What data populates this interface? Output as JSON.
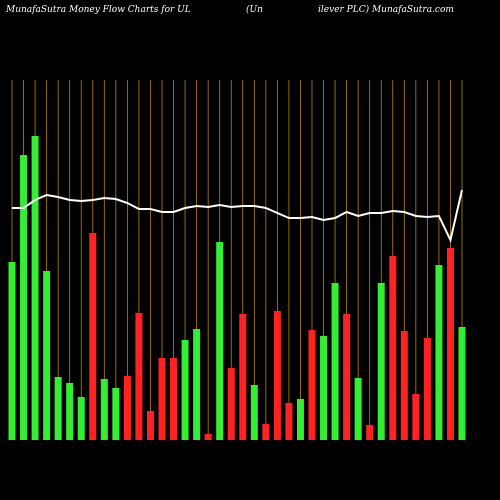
{
  "chart_data": {
    "type": "bar",
    "title": "MunafaSutra  Money Flow  Charts for UL",
    "title_mid": "(Un",
    "title_right": "ilever PLC) MunafaSutra.com",
    "ylim": [
      0,
      360
    ],
    "grid_color": "#b8860b",
    "line_color": "#ffffff",
    "series": [
      {
        "values": [
          178,
          285,
          304,
          169,
          63,
          57,
          43,
          207,
          61,
          52,
          64,
          127,
          29,
          82,
          82,
          100,
          111,
          6,
          198,
          72,
          126,
          55,
          16,
          129,
          37,
          41,
          110,
          104,
          157,
          126,
          62,
          15,
          157,
          184,
          109,
          46,
          102,
          175,
          192,
          113
        ],
        "colors": [
          "#33ee33",
          "#33ee33",
          "#33ee33",
          "#33ee33",
          "#33ee33",
          "#33ee33",
          "#33ee33",
          "#ff2222",
          "#33ee33",
          "#33ee33",
          "#ff2222",
          "#ff2222",
          "#ff2222",
          "#ff2222",
          "#ff2222",
          "#33ee33",
          "#33ee33",
          "#ff2222",
          "#33ee33",
          "#ff2222",
          "#ff2222",
          "#33ee33",
          "#ff2222",
          "#ff2222",
          "#ff2222",
          "#33ee33",
          "#ff2222",
          "#33ee33",
          "#33ee33",
          "#ff2222",
          "#33ee33",
          "#ff2222",
          "#33ee33",
          "#ff2222",
          "#ff2222",
          "#ff2222",
          "#ff2222",
          "#33ee33",
          "#ff2222",
          "#33ee33"
        ]
      },
      {
        "type": "line",
        "values": [
          232,
          232,
          240,
          245,
          243,
          240,
          239,
          240,
          242,
          241,
          237,
          231,
          231,
          228,
          228,
          232,
          234,
          233,
          235,
          233,
          234,
          234,
          232,
          227,
          222,
          222,
          223,
          220,
          222,
          228,
          224,
          227,
          227,
          229,
          228,
          224,
          223,
          224,
          200,
          250
        ]
      }
    ]
  }
}
